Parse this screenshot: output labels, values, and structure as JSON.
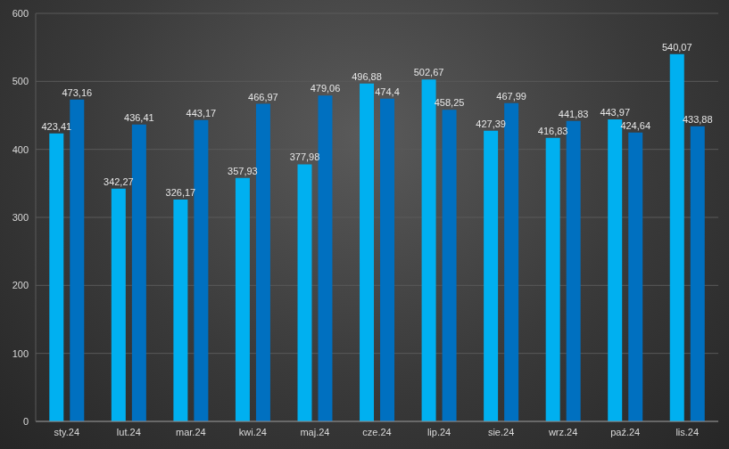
{
  "chart_data": {
    "type": "bar",
    "categories": [
      "sty.24",
      "lut.24",
      "mar.24",
      "kwi.24",
      "maj.24",
      "cze.24",
      "lip.24",
      "sie.24",
      "wrz.24",
      "paź.24",
      "lis.24"
    ],
    "series": [
      {
        "color": "#00b0f0",
        "values": [
          423.41,
          342.27,
          326.17,
          357.93,
          377.98,
          496.88,
          502.67,
          427.39,
          416.83,
          443.97,
          540.07
        ],
        "value_labels": [
          "423,41",
          "342,27",
          "326,17",
          "357,93",
          "377,98",
          "496,88",
          "502,67",
          "427,39",
          "416,83",
          "443,97",
          "540,07"
        ]
      },
      {
        "color": "#0070c0",
        "values": [
          473.16,
          436.41,
          443.17,
          466.97,
          479.06,
          474.4,
          458.25,
          467.99,
          441.83,
          424.64,
          433.88
        ],
        "value_labels": [
          "473,16",
          "436,41",
          "443,17",
          "466,97",
          "479,06",
          "474,4",
          "458,25",
          "467,99",
          "441,83",
          "424,64",
          "433,88"
        ]
      }
    ],
    "ylim": [
      0,
      600
    ],
    "yticks": [
      0,
      100,
      200,
      300,
      400,
      500,
      600
    ],
    "grid": true,
    "data_labels": true
  }
}
